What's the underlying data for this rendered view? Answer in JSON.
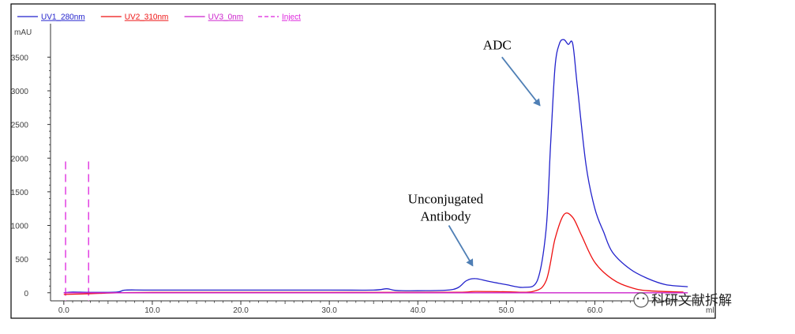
{
  "chart_data": {
    "type": "line",
    "title": "",
    "xlabel": "ml",
    "ylabel": "mAU",
    "xlim": [
      -1.5,
      72
    ],
    "ylim": [
      -120,
      3950
    ],
    "x_ticks": [
      0,
      10,
      20,
      30,
      40,
      50,
      60
    ],
    "x_tick_labels": [
      "0.0",
      "10.0",
      "20.0",
      "30.0",
      "40.0",
      "50.0",
      "60.0"
    ],
    "y_ticks": [
      0,
      500,
      1000,
      1500,
      2000,
      2500,
      3000,
      3500
    ],
    "y_tick_labels": [
      "0",
      "500",
      "1000",
      "1500",
      "2000",
      "2500",
      "3000",
      "3500"
    ],
    "grid": false,
    "legend_position": "top",
    "legend": [
      {
        "label": "UV1_280nm",
        "color": "#2222cc",
        "style": "solid"
      },
      {
        "label": "UV2_310nm",
        "color": "#ee1111",
        "style": "solid"
      },
      {
        "label": "UV3_0nm",
        "color": "#cc22cc",
        "style": "solid"
      },
      {
        "label": "Inject",
        "color": "#dd22dd",
        "style": "dashed"
      }
    ],
    "series": [
      {
        "name": "UV1_280nm",
        "color": "#2222cc",
        "x": [
          0,
          1,
          3,
          6,
          7,
          10,
          20,
          30,
          35,
          36.5,
          37.5,
          40,
          44,
          45.5,
          46.5,
          48,
          50,
          52,
          53.5,
          54.5,
          55,
          55.5,
          56,
          56.5,
          57,
          57.5,
          58,
          59,
          60,
          61,
          62,
          64,
          66,
          68,
          70.5
        ],
        "y": [
          0,
          10,
          5,
          10,
          40,
          40,
          40,
          40,
          40,
          60,
          35,
          30,
          50,
          180,
          210,
          170,
          120,
          80,
          180,
          950,
          2200,
          3350,
          3700,
          3760,
          3690,
          3700,
          3100,
          1900,
          1250,
          900,
          600,
          350,
          210,
          120,
          90
        ]
      },
      {
        "name": "UV2_310nm",
        "color": "#ee1111",
        "x": [
          0,
          3,
          6,
          10,
          20,
          30,
          40,
          45,
          46.5,
          50,
          53,
          54.5,
          55.5,
          56.5,
          57.5,
          58.5,
          60,
          62,
          64,
          66,
          70
        ],
        "y": [
          -25,
          -15,
          0,
          5,
          5,
          5,
          5,
          8,
          20,
          15,
          20,
          180,
          800,
          1160,
          1120,
          850,
          450,
          200,
          80,
          30,
          10
        ]
      },
      {
        "name": "UV3_0nm",
        "color": "#cc22cc",
        "x": [
          0,
          70.5
        ],
        "y": [
          0,
          0
        ]
      }
    ],
    "inject_markers_x": [
      0.2,
      2.8
    ],
    "inject_marker_top": 1950,
    "annotations": [
      {
        "id": "adc",
        "lines": [
          "ADC"
        ],
        "arrow_from": [
          49.5,
          3500
        ],
        "arrow_to": [
          53.8,
          2780
        ]
      },
      {
        "id": "unconjugated",
        "lines": [
          "Unconjugated",
          "Antibody"
        ],
        "arrow_from": [
          43.5,
          1000
        ],
        "arrow_to": [
          46.2,
          400
        ]
      }
    ]
  },
  "watermark": "科研文献拆解"
}
